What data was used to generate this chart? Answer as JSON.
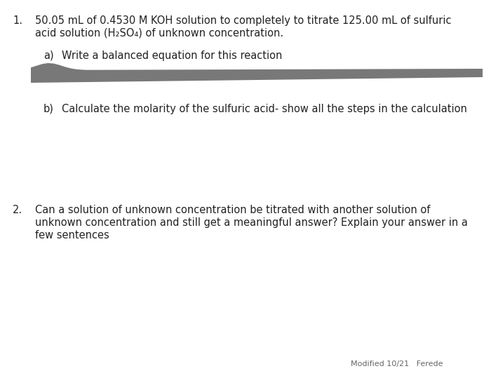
{
  "background_color": "#ffffff",
  "text_color": "#222222",
  "font_size_body": 10.5,
  "item1_number": "1.",
  "item1_line1": "50.05 mL of 0.4530 M KOH solution to completely to titrate 125.00 mL of sulfuric",
  "item1_line2": "acid solution (H₂SO₄) of unknown concentration.",
  "item1a_label": "a)",
  "item1a_text": "Write a balanced equation for this reaction",
  "item1b_label": "b)",
  "item1b_text": "Calculate the molarity of the sulfuric acid- show all the steps in the calculation",
  "item2_number": "2.",
  "item2_line1": "Can a solution of unknown concentration be titrated with another solution of",
  "item2_line2": "unknown concentration and still get a meaningful answer? Explain your answer in a",
  "item2_line3": "few sentences",
  "footer_text": "Modified 10/21   Ferede",
  "stroke_color": "#787878"
}
